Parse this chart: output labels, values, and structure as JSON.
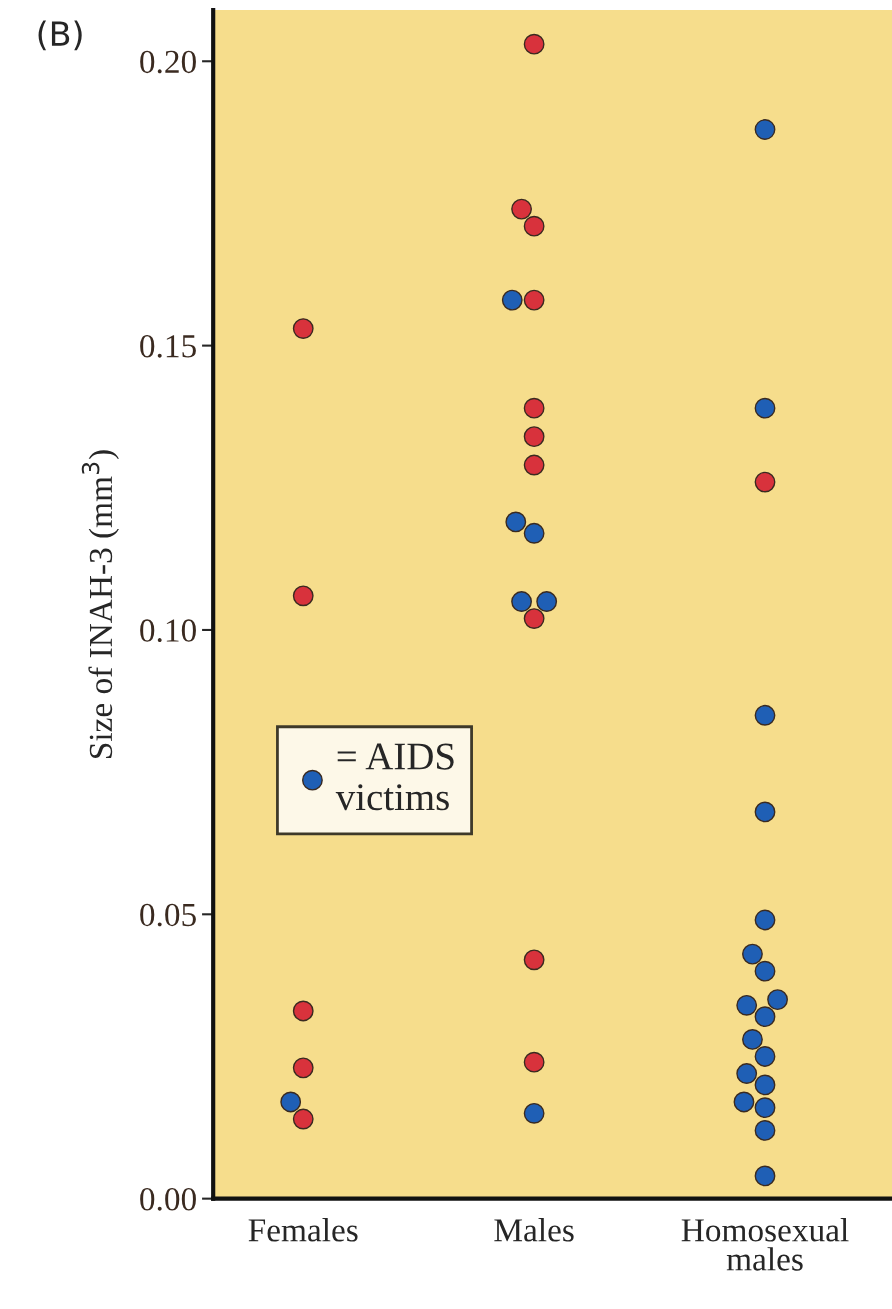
{
  "chart_data": {
    "type": "scatter",
    "title": "(B)",
    "ylabel": "Size of INAH-3 (mm$^{3}$)",
    "categories": [
      "Females",
      "Males",
      "Homosexual\nmales"
    ],
    "ylim": [
      0,
      0.209
    ],
    "yticks": [
      {
        "value": 0,
        "label": "0.00"
      },
      {
        "value": 0.05,
        "label": "0.05"
      },
      {
        "value": 0.1,
        "label": "0.10"
      },
      {
        "value": 0.15,
        "label": "0.15"
      },
      {
        "value": 0.2,
        "label": "0.20"
      }
    ],
    "marker": "circle",
    "grid": false,
    "legend": "center left",
    "series": [
      {
        "color": "#d8323c",
        "x": [
          "Females",
          "Females",
          "Females",
          "Females",
          "Females",
          "Males",
          "Males",
          "Males",
          "Males",
          "Males",
          "Males",
          "Males",
          "Males",
          "Males",
          "Males",
          "Homosexual\nmales"
        ],
        "values": [
          0.153,
          0.106,
          0.033,
          0.023,
          0.014,
          0.203,
          0.174,
          0.171,
          0.158,
          0.139,
          0.134,
          0.129,
          0.102,
          0.042,
          0.024,
          0.126
        ]
      },
      {
        "name": "= AIDS\nvictims",
        "color": "#1f5fb5",
        "x": [
          "Females",
          "Males",
          "Males",
          "Males",
          "Males",
          "Males",
          "Males",
          "Homosexual\nmales",
          "Homosexual\nmales",
          "Homosexual\nmales",
          "Homosexual\nmales",
          "Homosexual\nmales",
          "Homosexual\nmales",
          "Homosexual\nmales",
          "Homosexual\nmales",
          "Homosexual\nmales",
          "Homosexual\nmales",
          "Homosexual\nmales",
          "Homosexual\nmales",
          "Homosexual\nmales",
          "Homosexual\nmales",
          "Homosexual\nmales",
          "Homosexual\nmales",
          "Homosexual\nmales",
          "Homosexual\nmales"
        ],
        "values": [
          0.017,
          0.158,
          0.117,
          0.119,
          0.105,
          0.105,
          0.015,
          0.188,
          0.139,
          0.085,
          0.068,
          0.049,
          0.043,
          0.04,
          0.035,
          0.034,
          0.032,
          0.028,
          0.025,
          0.022,
          0.02,
          0.017,
          0.016,
          0.012,
          0.004
        ]
      }
    ]
  }
}
